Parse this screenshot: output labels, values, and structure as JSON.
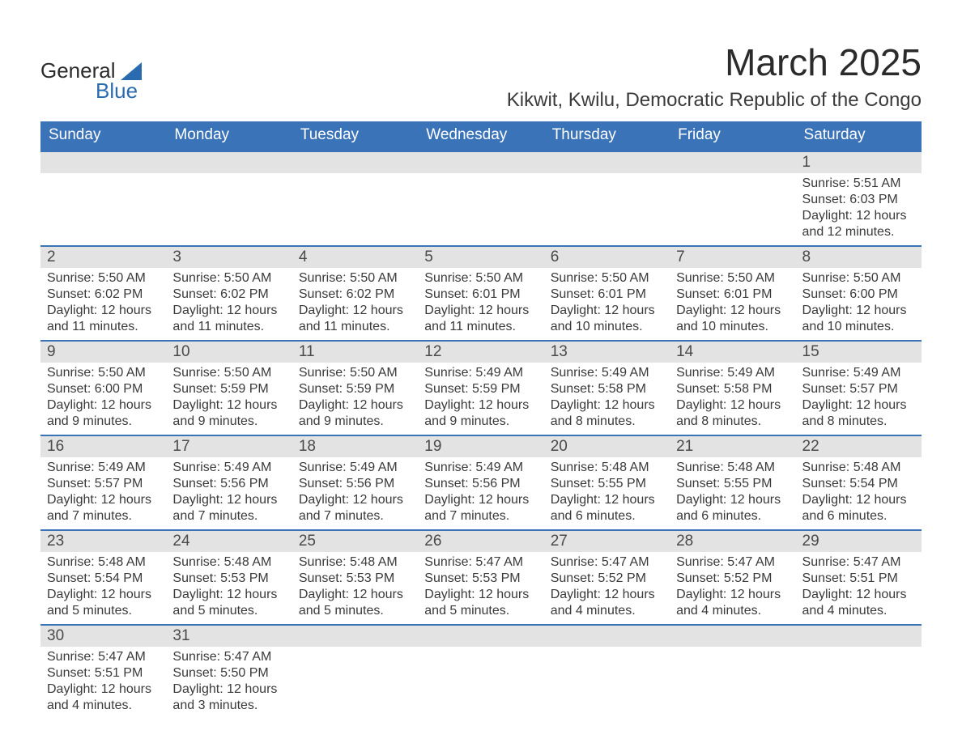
{
  "logo": {
    "word1": "General",
    "word2": "Blue"
  },
  "title": "March 2025",
  "location": "Kikwit, Kwilu, Democratic Republic of the Congo",
  "colors": {
    "header_bg": "#3b73b9",
    "header_text": "#ffffff",
    "daynum_bg": "#e3e3e3",
    "border": "#3b73b9",
    "body_text": "#3a3a3a",
    "logo_accent": "#2a6bb0",
    "page_bg": "#ffffff"
  },
  "typography": {
    "title_fontsize": 46,
    "location_fontsize": 24,
    "weekday_fontsize": 19,
    "daynum_fontsize": 19,
    "body_fontsize": 16,
    "font_family": "Arial"
  },
  "weekdays": [
    "Sunday",
    "Monday",
    "Tuesday",
    "Wednesday",
    "Thursday",
    "Friday",
    "Saturday"
  ],
  "labels": {
    "sunrise": "Sunrise:",
    "sunset": "Sunset:",
    "daylight": "Daylight:"
  },
  "weeks": [
    [
      {
        "blank": true
      },
      {
        "blank": true
      },
      {
        "blank": true
      },
      {
        "blank": true
      },
      {
        "blank": true
      },
      {
        "blank": true
      },
      {
        "day": 1,
        "sunrise": "5:51 AM",
        "sunset": "6:03 PM",
        "daylight": "12 hours and 12 minutes."
      }
    ],
    [
      {
        "day": 2,
        "sunrise": "5:50 AM",
        "sunset": "6:02 PM",
        "daylight": "12 hours and 11 minutes."
      },
      {
        "day": 3,
        "sunrise": "5:50 AM",
        "sunset": "6:02 PM",
        "daylight": "12 hours and 11 minutes."
      },
      {
        "day": 4,
        "sunrise": "5:50 AM",
        "sunset": "6:02 PM",
        "daylight": "12 hours and 11 minutes."
      },
      {
        "day": 5,
        "sunrise": "5:50 AM",
        "sunset": "6:01 PM",
        "daylight": "12 hours and 11 minutes."
      },
      {
        "day": 6,
        "sunrise": "5:50 AM",
        "sunset": "6:01 PM",
        "daylight": "12 hours and 10 minutes."
      },
      {
        "day": 7,
        "sunrise": "5:50 AM",
        "sunset": "6:01 PM",
        "daylight": "12 hours and 10 minutes."
      },
      {
        "day": 8,
        "sunrise": "5:50 AM",
        "sunset": "6:00 PM",
        "daylight": "12 hours and 10 minutes."
      }
    ],
    [
      {
        "day": 9,
        "sunrise": "5:50 AM",
        "sunset": "6:00 PM",
        "daylight": "12 hours and 9 minutes."
      },
      {
        "day": 10,
        "sunrise": "5:50 AM",
        "sunset": "5:59 PM",
        "daylight": "12 hours and 9 minutes."
      },
      {
        "day": 11,
        "sunrise": "5:50 AM",
        "sunset": "5:59 PM",
        "daylight": "12 hours and 9 minutes."
      },
      {
        "day": 12,
        "sunrise": "5:49 AM",
        "sunset": "5:59 PM",
        "daylight": "12 hours and 9 minutes."
      },
      {
        "day": 13,
        "sunrise": "5:49 AM",
        "sunset": "5:58 PM",
        "daylight": "12 hours and 8 minutes."
      },
      {
        "day": 14,
        "sunrise": "5:49 AM",
        "sunset": "5:58 PM",
        "daylight": "12 hours and 8 minutes."
      },
      {
        "day": 15,
        "sunrise": "5:49 AM",
        "sunset": "5:57 PM",
        "daylight": "12 hours and 8 minutes."
      }
    ],
    [
      {
        "day": 16,
        "sunrise": "5:49 AM",
        "sunset": "5:57 PM",
        "daylight": "12 hours and 7 minutes."
      },
      {
        "day": 17,
        "sunrise": "5:49 AM",
        "sunset": "5:56 PM",
        "daylight": "12 hours and 7 minutes."
      },
      {
        "day": 18,
        "sunrise": "5:49 AM",
        "sunset": "5:56 PM",
        "daylight": "12 hours and 7 minutes."
      },
      {
        "day": 19,
        "sunrise": "5:49 AM",
        "sunset": "5:56 PM",
        "daylight": "12 hours and 7 minutes."
      },
      {
        "day": 20,
        "sunrise": "5:48 AM",
        "sunset": "5:55 PM",
        "daylight": "12 hours and 6 minutes."
      },
      {
        "day": 21,
        "sunrise": "5:48 AM",
        "sunset": "5:55 PM",
        "daylight": "12 hours and 6 minutes."
      },
      {
        "day": 22,
        "sunrise": "5:48 AM",
        "sunset": "5:54 PM",
        "daylight": "12 hours and 6 minutes."
      }
    ],
    [
      {
        "day": 23,
        "sunrise": "5:48 AM",
        "sunset": "5:54 PM",
        "daylight": "12 hours and 5 minutes."
      },
      {
        "day": 24,
        "sunrise": "5:48 AM",
        "sunset": "5:53 PM",
        "daylight": "12 hours and 5 minutes."
      },
      {
        "day": 25,
        "sunrise": "5:48 AM",
        "sunset": "5:53 PM",
        "daylight": "12 hours and 5 minutes."
      },
      {
        "day": 26,
        "sunrise": "5:47 AM",
        "sunset": "5:53 PM",
        "daylight": "12 hours and 5 minutes."
      },
      {
        "day": 27,
        "sunrise": "5:47 AM",
        "sunset": "5:52 PM",
        "daylight": "12 hours and 4 minutes."
      },
      {
        "day": 28,
        "sunrise": "5:47 AM",
        "sunset": "5:52 PM",
        "daylight": "12 hours and 4 minutes."
      },
      {
        "day": 29,
        "sunrise": "5:47 AM",
        "sunset": "5:51 PM",
        "daylight": "12 hours and 4 minutes."
      }
    ],
    [
      {
        "day": 30,
        "sunrise": "5:47 AM",
        "sunset": "5:51 PM",
        "daylight": "12 hours and 4 minutes."
      },
      {
        "day": 31,
        "sunrise": "5:47 AM",
        "sunset": "5:50 PM",
        "daylight": "12 hours and 3 minutes."
      },
      {
        "blank": true
      },
      {
        "blank": true
      },
      {
        "blank": true
      },
      {
        "blank": true
      },
      {
        "blank": true
      }
    ]
  ]
}
